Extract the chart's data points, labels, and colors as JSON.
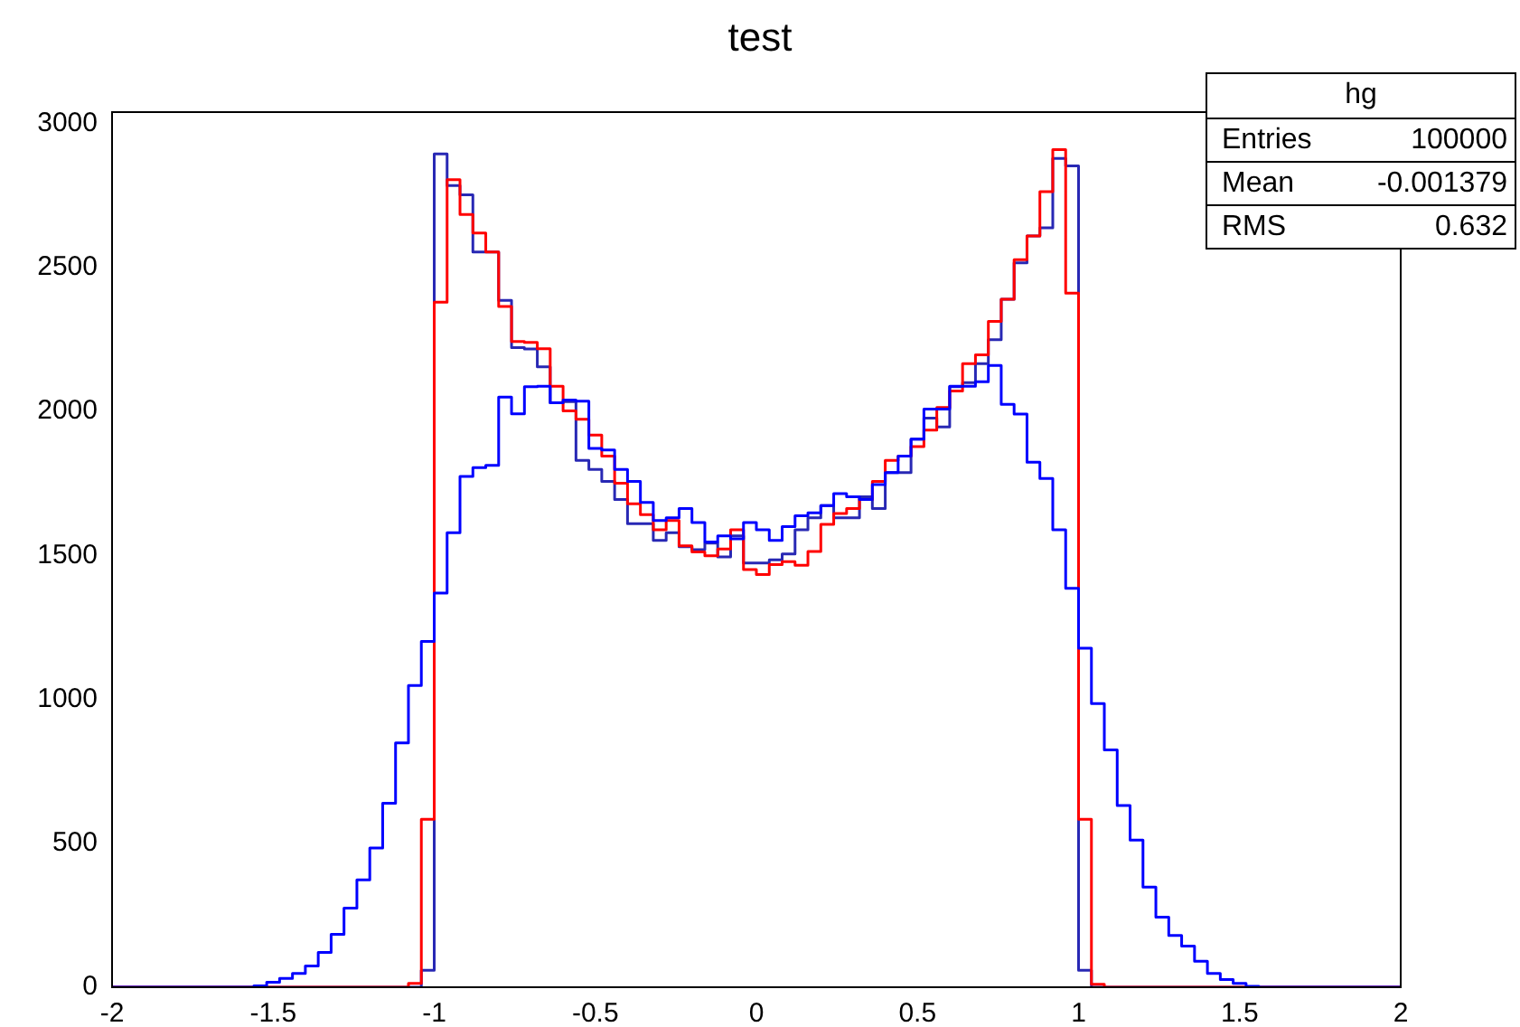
{
  "chart_data": {
    "type": "histogram",
    "title": "test",
    "bins": [
      -2,
      -1.96,
      -1.92,
      -1.88,
      -1.84,
      -1.8,
      -1.76,
      -1.72,
      -1.68,
      -1.64,
      -1.6,
      -1.56,
      -1.52,
      -1.48,
      -1.44,
      -1.4,
      -1.36,
      -1.32,
      -1.28,
      -1.24,
      -1.2,
      -1.16,
      -1.12,
      -1.08,
      -1.04,
      -1,
      -0.96,
      -0.92,
      -0.88,
      -0.84,
      -0.8,
      -0.76,
      -0.72,
      -0.68,
      -0.64,
      -0.6,
      -0.56,
      -0.52,
      -0.48,
      -0.44,
      -0.4,
      -0.36,
      -0.32,
      -0.28,
      -0.24,
      -0.2,
      -0.16,
      -0.12,
      -0.08,
      -0.04,
      0,
      0.04,
      0.08,
      0.12,
      0.16,
      0.2,
      0.24,
      0.28,
      0.32,
      0.36,
      0.4,
      0.44,
      0.48,
      0.52,
      0.56,
      0.6,
      0.64,
      0.68,
      0.72,
      0.76,
      0.8,
      0.84,
      0.88,
      0.92,
      0.96,
      1,
      1.04,
      1.08,
      1.12,
      1.16,
      1.2,
      1.24,
      1.28,
      1.32,
      1.36,
      1.4,
      1.44,
      1.48,
      1.52,
      1.56,
      1.6,
      1.64,
      1.68,
      1.72,
      1.76,
      1.8,
      1.84,
      1.88,
      1.92,
      1.96,
      2
    ],
    "series": [
      {
        "color": "#0000ff",
        "values": [
          0,
          0,
          0,
          0,
          0,
          0,
          0,
          0,
          0,
          0,
          0,
          5,
          17,
          31,
          48,
          74,
          121,
          184,
          275,
          373,
          484,
          639,
          849,
          1048,
          1201,
          1369,
          1579,
          1774,
          1805,
          1813,
          2050,
          1992,
          2086,
          2088,
          2030,
          2040,
          2036,
          1872,
          1866,
          1799,
          1757,
          1684,
          1621,
          1631,
          1663,
          1614,
          1547,
          1568,
          1558,
          1614,
          1589,
          1552,
          1600,
          1638,
          1648,
          1673,
          1715,
          1704,
          1694,
          1746,
          1788,
          1845,
          1904,
          2008,
          2008,
          2088,
          2088,
          2103,
          2160,
          2025,
          1991,
          1824,
          1767,
          1589,
          1386,
          1178,
          985,
          824,
          631,
          511,
          348,
          243,
          180,
          143,
          90,
          48,
          27,
          13,
          3,
          0,
          0,
          0,
          0,
          0,
          0,
          0,
          0,
          0,
          0,
          0
        ]
      },
      {
        "color": "#ff0000",
        "values": [
          0,
          0,
          0,
          0,
          0,
          0,
          0,
          0,
          0,
          0,
          0,
          0,
          0,
          0,
          0,
          0,
          0,
          0,
          0,
          0,
          0,
          0,
          0,
          13,
          583,
          2380,
          2805,
          2684,
          2620,
          2554,
          2365,
          2243,
          2240,
          2218,
          2088,
          2002,
          1973,
          1918,
          1845,
          1751,
          1679,
          1642,
          1589,
          1621,
          1533,
          1512,
          1499,
          1522,
          1589,
          1451,
          1434,
          1468,
          1478,
          1466,
          1514,
          1608,
          1646,
          1663,
          1694,
          1757,
          1830,
          1845,
          1878,
          1935,
          2014,
          2071,
          2166,
          2197,
          2313,
          2390,
          2527,
          2610,
          2764,
          2910,
          2411,
          583,
          10,
          0,
          0,
          0,
          0,
          0,
          0,
          0,
          0,
          0,
          0,
          0,
          0,
          0,
          0,
          0,
          0,
          0,
          0,
          0,
          0,
          0,
          0,
          0
        ]
      },
      {
        "color": "#2828b4",
        "values": [
          0,
          0,
          0,
          0,
          0,
          0,
          0,
          0,
          0,
          0,
          0,
          0,
          0,
          0,
          0,
          0,
          0,
          0,
          0,
          0,
          0,
          0,
          0,
          0,
          59,
          2895,
          2785,
          2753,
          2554,
          2554,
          2386,
          2222,
          2217,
          2155,
          2030,
          2034,
          1830,
          1799,
          1757,
          1694,
          1610,
          1610,
          1552,
          1579,
          1530,
          1520,
          1543,
          1495,
          1568,
          1474,
          1474,
          1485,
          1505,
          1589,
          1631,
          1673,
          1631,
          1631,
          1704,
          1663,
          1788,
          1788,
          1904,
          1977,
          1946,
          2086,
          2100,
          2166,
          2249,
          2390,
          2516,
          2610,
          2638,
          2879,
          2853,
          59,
          0,
          0,
          0,
          0,
          0,
          0,
          0,
          0,
          0,
          0,
          0,
          0,
          0,
          0,
          0,
          0,
          0,
          0,
          0,
          0,
          0,
          0,
          0,
          0
        ]
      }
    ],
    "xlim": [
      -2,
      2
    ],
    "xticks": [
      -2,
      -1.5,
      -1,
      -0.5,
      0,
      0.5,
      1,
      1.5,
      2
    ],
    "ylim": [
      0,
      3040
    ],
    "yticks": [
      0,
      500,
      1000,
      1500,
      2000,
      2500,
      3000
    ],
    "annotations": [
      "hg",
      "Entries",
      "100000",
      "Mean",
      "-0.001379",
      "RMS",
      "0.632"
    ]
  }
}
